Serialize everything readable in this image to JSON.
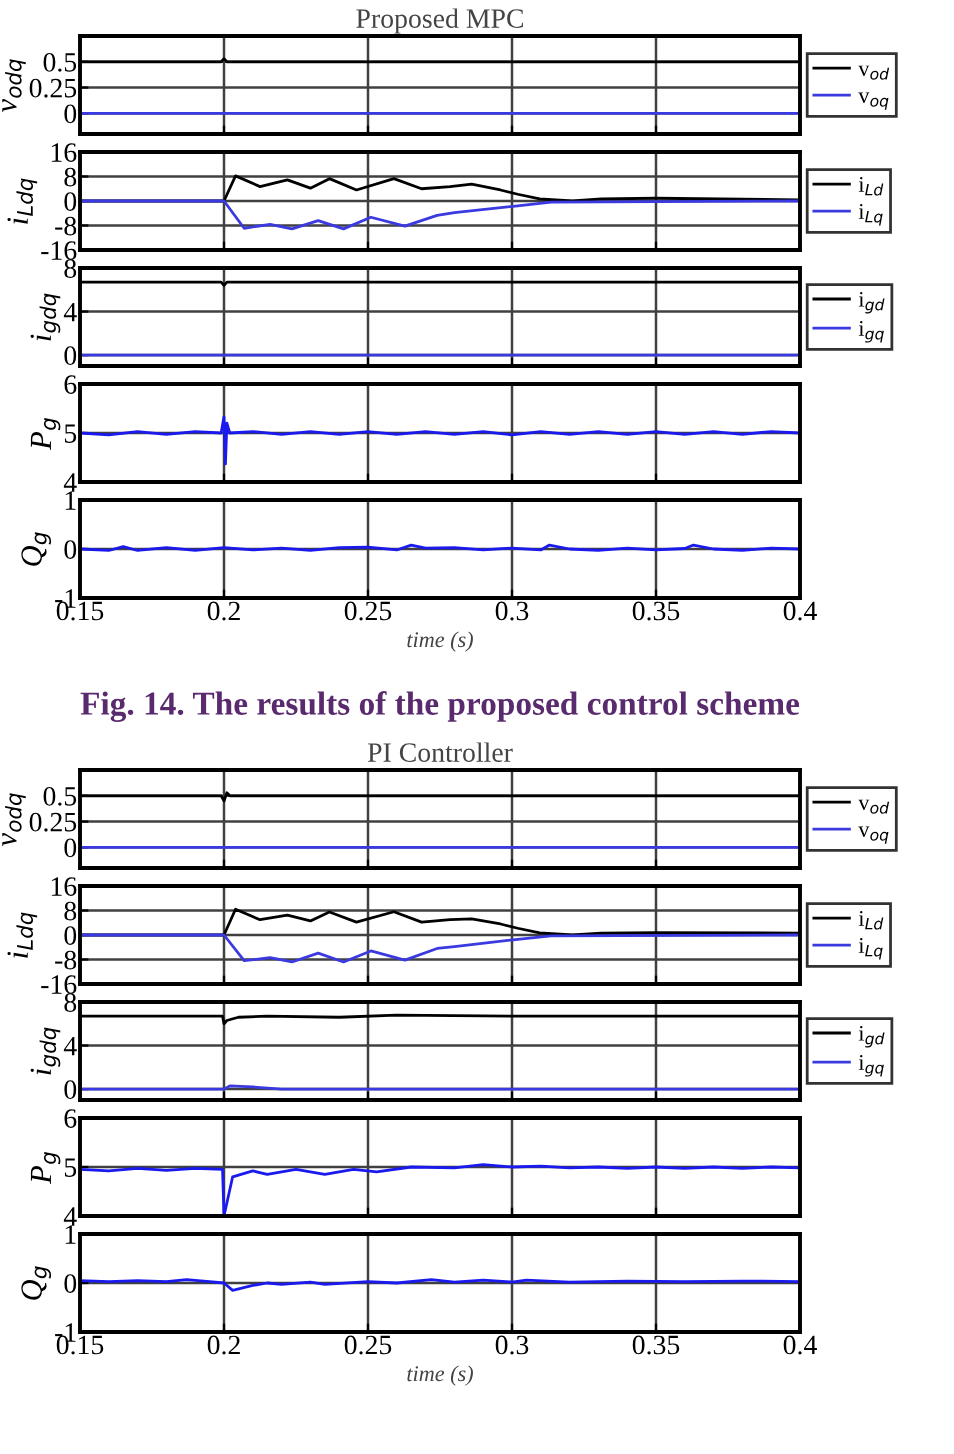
{
  "chart_data": [
    {
      "type": "line",
      "title": "Proposed MPC",
      "ylabel": "v$_{odq}$",
      "xlim": [
        0.15,
        0.4
      ],
      "xticks": [
        0.15,
        0.2,
        0.25,
        0.3,
        0.35,
        0.4
      ],
      "ylim": [
        -0.2,
        0.75
      ],
      "yticks": [
        0,
        0.25,
        0.5
      ],
      "tick_labels": "y",
      "grid": true,
      "legend": "right",
      "series": [
        {
          "name": "v$_{od}$",
          "color": "#000000",
          "x": [
            0.15,
            0.199,
            0.2,
            0.201,
            0.4
          ],
          "values": [
            0.5,
            0.5,
            0.53,
            0.5,
            0.5
          ]
        },
        {
          "name": "v$_{oq}$",
          "color": "#3a3ae0",
          "x": [
            0.15,
            0.4
          ],
          "values": [
            0,
            0
          ]
        }
      ]
    },
    {
      "type": "line",
      "ylabel": "i$_{Ldq}$",
      "xlim": [
        0.15,
        0.4
      ],
      "xticks": [
        0.15,
        0.2,
        0.25,
        0.3,
        0.35,
        0.4
      ],
      "ylim": [
        -16,
        16
      ],
      "yticks": [
        -16,
        -8,
        0,
        8,
        16
      ],
      "tick_labels": "y",
      "grid": true,
      "legend": "right",
      "series": [
        {
          "name": "i$_{Ld}$",
          "color": "#000000",
          "x": [
            0.15,
            0.2,
            0.204,
            0.2125,
            0.222,
            0.23,
            0.2366,
            0.246,
            0.259,
            0.2686,
            0.2785,
            0.286,
            0.296,
            0.302,
            0.3096,
            0.321,
            0.331,
            0.35,
            0.4
          ],
          "values": [
            0,
            0,
            8.2,
            4.7,
            6.9,
            4.2,
            7.3,
            3.6,
            7.3,
            4,
            4.7,
            5.5,
            3.6,
            2.2,
            0.7,
            0,
            0.7,
            0.9,
            0.4
          ]
        },
        {
          "name": "i$_{Lq}$",
          "color": "#3a3ae0",
          "x": [
            0.15,
            0.2,
            0.207,
            0.216,
            0.2236,
            0.2327,
            0.2415,
            0.251,
            0.2628,
            0.274,
            0.28,
            0.302,
            0.3135,
            0.4
          ],
          "values": [
            0,
            0,
            -8.9,
            -7.6,
            -9.1,
            -6.4,
            -9.1,
            -5.3,
            -8.2,
            -4.7,
            -3.8,
            -1.6,
            -0.4,
            0
          ]
        }
      ]
    },
    {
      "type": "line",
      "ylabel": "i$_{gdq}$",
      "xlim": [
        0.15,
        0.4
      ],
      "xticks": [
        0.15,
        0.2,
        0.25,
        0.3,
        0.35,
        0.4
      ],
      "ylim": [
        -1,
        8
      ],
      "yticks": [
        0,
        4,
        8
      ],
      "tick_labels": "y",
      "grid": true,
      "legend": "right",
      "series": [
        {
          "name": "i$_{gd}$",
          "color": "#000000",
          "x": [
            0.15,
            0.199,
            0.2,
            0.201,
            0.4
          ],
          "values": [
            6.7,
            6.7,
            6.4,
            6.7,
            6.7
          ]
        },
        {
          "name": "i$_{gq}$",
          "color": "#3a3ae0",
          "x": [
            0.15,
            0.4
          ],
          "values": [
            0,
            0
          ]
        }
      ]
    },
    {
      "type": "line",
      "ylabel": "P$_{g}$",
      "xlim": [
        0.15,
        0.4
      ],
      "xticks": [
        0.15,
        0.2,
        0.25,
        0.3,
        0.35,
        0.4
      ],
      "ylim": [
        4,
        6
      ],
      "yticks": [
        4,
        5,
        6
      ],
      "tick_labels": "y",
      "grid": true,
      "series": [
        {
          "color": "#1a1aee",
          "x": [
            0.15,
            0.16,
            0.17,
            0.18,
            0.19,
            0.199,
            0.2,
            0.2005,
            0.201,
            0.202,
            0.21,
            0.22,
            0.23,
            0.24,
            0.25,
            0.26,
            0.27,
            0.28,
            0.29,
            0.3,
            0.31,
            0.32,
            0.33,
            0.34,
            0.35,
            0.36,
            0.37,
            0.38,
            0.39,
            0.4
          ],
          "values": [
            5.0,
            4.96,
            5.03,
            4.97,
            5.03,
            5.0,
            5.33,
            4.37,
            5.2,
            5.0,
            5.03,
            4.97,
            5.03,
            4.97,
            5.03,
            4.97,
            5.03,
            4.97,
            5.03,
            4.96,
            5.03,
            4.97,
            5.03,
            4.97,
            5.03,
            4.97,
            5.03,
            4.97,
            5.03,
            5.0
          ]
        }
      ]
    },
    {
      "type": "line",
      "ylabel": "Q$_{g}$",
      "xlabel": "time (s)",
      "xlim": [
        0.15,
        0.4
      ],
      "xticks": [
        0.15,
        0.2,
        0.25,
        0.3,
        0.35,
        0.4
      ],
      "ylim": [
        -1,
        1
      ],
      "yticks": [
        -1,
        0,
        1
      ],
      "grid": true,
      "annotations": [
        "Fig. 14. The results of the proposed control scheme"
      ],
      "series": [
        {
          "color": "#1a1aee",
          "x": [
            0.15,
            0.16,
            0.165,
            0.17,
            0.18,
            0.19,
            0.2,
            0.21,
            0.22,
            0.23,
            0.24,
            0.25,
            0.26,
            0.265,
            0.27,
            0.28,
            0.29,
            0.3,
            0.31,
            0.313,
            0.32,
            0.33,
            0.34,
            0.35,
            0.36,
            0.363,
            0.37,
            0.38,
            0.39,
            0.4
          ],
          "values": [
            0,
            -0.03,
            0.05,
            -0.03,
            0.03,
            -0.03,
            0.03,
            -0.02,
            0.02,
            -0.03,
            0.03,
            0.04,
            -0.02,
            0.08,
            0.02,
            0.03,
            -0.02,
            0.02,
            -0.02,
            0.08,
            0.0,
            -0.03,
            0.02,
            -0.02,
            0.01,
            0.08,
            0.0,
            -0.03,
            0.02,
            0
          ]
        }
      ]
    },
    {
      "type": "line",
      "title": "PI Controller",
      "ylabel": "v$_{odq}$",
      "xlim": [
        0.15,
        0.4
      ],
      "xticks": [
        0.15,
        0.2,
        0.25,
        0.3,
        0.35,
        0.4
      ],
      "ylim": [
        -0.2,
        0.75
      ],
      "yticks": [
        0,
        0.25,
        0.5
      ],
      "tick_labels": "y",
      "grid": true,
      "legend": "right",
      "series": [
        {
          "name": "v$_{od}$",
          "color": "#000000",
          "x": [
            0.15,
            0.199,
            0.2,
            0.201,
            0.202,
            0.4
          ],
          "values": [
            0.5,
            0.5,
            0.45,
            0.53,
            0.5,
            0.5
          ]
        },
        {
          "name": "v$_{oq}$",
          "color": "#3a3ae0",
          "x": [
            0.15,
            0.4
          ],
          "values": [
            0,
            0
          ]
        }
      ]
    },
    {
      "type": "line",
      "ylabel": "i$_{Ldq}$",
      "xlim": [
        0.15,
        0.4
      ],
      "xticks": [
        0.15,
        0.2,
        0.25,
        0.3,
        0.35,
        0.4
      ],
      "ylim": [
        -16,
        16
      ],
      "yticks": [
        -16,
        -8,
        0,
        8,
        16
      ],
      "tick_labels": "y",
      "grid": true,
      "legend": "right",
      "series": [
        {
          "name": "i$_{Ld}$",
          "color": "#000000",
          "x": [
            0.15,
            0.2,
            0.204,
            0.2125,
            0.222,
            0.23,
            0.2366,
            0.246,
            0.259,
            0.2686,
            0.2785,
            0.286,
            0.296,
            0.302,
            0.3096,
            0.321,
            0.331,
            0.35,
            0.4
          ],
          "values": [
            0,
            0,
            8.4,
            5,
            6.5,
            4.6,
            7.5,
            4.2,
            7.6,
            4.2,
            5,
            5.3,
            3.6,
            2.2,
            0.7,
            0,
            0.6,
            0.8,
            0.6
          ]
        },
        {
          "name": "i$_{Lq}$",
          "color": "#3a3ae0",
          "x": [
            0.15,
            0.2,
            0.207,
            0.216,
            0.2236,
            0.2327,
            0.2415,
            0.251,
            0.2628,
            0.274,
            0.28,
            0.302,
            0.3135,
            0.4
          ],
          "values": [
            0,
            0,
            -8.4,
            -7.4,
            -8.8,
            -5.9,
            -8.8,
            -5.2,
            -8.2,
            -4.4,
            -3.8,
            -1.4,
            -0.3,
            0
          ]
        }
      ]
    },
    {
      "type": "line",
      "ylabel": "i$_{gdq}$",
      "xlim": [
        0.15,
        0.4
      ],
      "xticks": [
        0.15,
        0.2,
        0.25,
        0.3,
        0.35,
        0.4
      ],
      "ylim": [
        -1,
        8
      ],
      "yticks": [
        0,
        4,
        8
      ],
      "tick_labels": "y",
      "grid": true,
      "legend": "right",
      "series": [
        {
          "name": "i$_{gd}$",
          "color": "#000000",
          "x": [
            0.15,
            0.1995,
            0.2,
            0.201,
            0.205,
            0.215,
            0.24,
            0.26,
            0.3,
            0.4
          ],
          "values": [
            6.7,
            6.7,
            6.0,
            6.3,
            6.6,
            6.7,
            6.6,
            6.8,
            6.7,
            6.7
          ]
        },
        {
          "name": "i$_{gq}$",
          "color": "#3a3ae0",
          "x": [
            0.15,
            0.2,
            0.202,
            0.21,
            0.22,
            0.4
          ],
          "values": [
            0,
            0,
            0.3,
            0.2,
            0,
            0
          ]
        }
      ]
    },
    {
      "type": "line",
      "ylabel": "P$_{g}$",
      "xlim": [
        0.15,
        0.4
      ],
      "xticks": [
        0.15,
        0.2,
        0.25,
        0.3,
        0.35,
        0.4
      ],
      "ylim": [
        4,
        6
      ],
      "yticks": [
        4,
        5,
        6
      ],
      "tick_labels": "y",
      "grid": true,
      "series": [
        {
          "color": "#1a1aee",
          "x": [
            0.15,
            0.16,
            0.17,
            0.18,
            0.19,
            0.1995,
            0.2,
            0.203,
            0.21,
            0.215,
            0.225,
            0.235,
            0.245,
            0.253,
            0.265,
            0.28,
            0.29,
            0.3,
            0.31,
            0.32,
            0.33,
            0.34,
            0.35,
            0.36,
            0.37,
            0.38,
            0.39,
            0.4
          ],
          "values": [
            4.95,
            4.92,
            4.97,
            4.93,
            4.97,
            4.95,
            4.0,
            4.8,
            4.92,
            4.85,
            4.95,
            4.85,
            4.95,
            4.9,
            5.0,
            4.98,
            5.05,
            5.0,
            5.02,
            4.98,
            5.0,
            4.97,
            5.0,
            4.97,
            5.0,
            4.97,
            5.0,
            4.98
          ]
        }
      ]
    },
    {
      "type": "line",
      "ylabel": "Q$_{g}$",
      "xlabel": "time (s)",
      "xlim": [
        0.15,
        0.4
      ],
      "xticks": [
        0.15,
        0.2,
        0.25,
        0.3,
        0.35,
        0.4
      ],
      "ylim": [
        -1,
        1
      ],
      "yticks": [
        -1,
        0,
        1
      ],
      "grid": true,
      "series": [
        {
          "color": "#1a1aee",
          "x": [
            0.15,
            0.16,
            0.17,
            0.18,
            0.187,
            0.195,
            0.2,
            0.203,
            0.21,
            0.215,
            0.22,
            0.23,
            0.235,
            0.25,
            0.26,
            0.272,
            0.28,
            0.29,
            0.3,
            0.305,
            0.32,
            0.34,
            0.36,
            0.38,
            0.4
          ],
          "values": [
            0.05,
            0.03,
            0.05,
            0.03,
            0.07,
            0.03,
            0.0,
            -0.15,
            -0.05,
            0.0,
            -0.03,
            0.02,
            -0.03,
            0.03,
            0.0,
            0.07,
            0.02,
            0.06,
            0.02,
            0.06,
            0.02,
            0.04,
            0.03,
            0.04,
            0.03
          ]
        }
      ]
    }
  ]
}
